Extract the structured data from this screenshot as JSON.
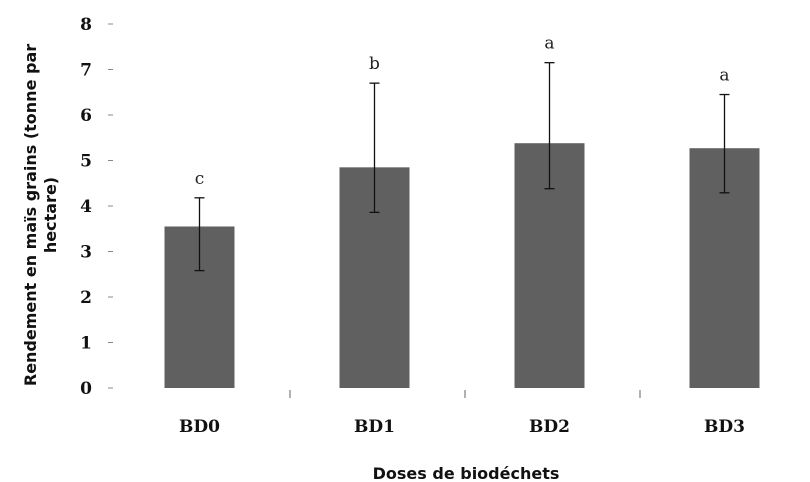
{
  "chart_data": {
    "type": "bar",
    "categories": [
      "BD0",
      "BD1",
      "BD2",
      "BD3"
    ],
    "values": [
      3.55,
      4.85,
      5.38,
      5.27
    ],
    "error_upper": [
      4.18,
      6.7,
      7.15,
      6.45
    ],
    "error_lower": [
      2.58,
      3.86,
      4.38,
      4.29
    ],
    "significance": [
      "c",
      "b",
      "a",
      "a"
    ],
    "title": "",
    "xlabel": "Doses de biodéchets",
    "ylabel": "Rendement en maïs grains (tonne par hectare)",
    "ylim": [
      0,
      8
    ],
    "yticks": [
      0,
      1,
      2,
      3,
      4,
      5,
      6,
      7,
      8
    ],
    "grid": false,
    "legend": "none",
    "bar_color": "#606060"
  }
}
